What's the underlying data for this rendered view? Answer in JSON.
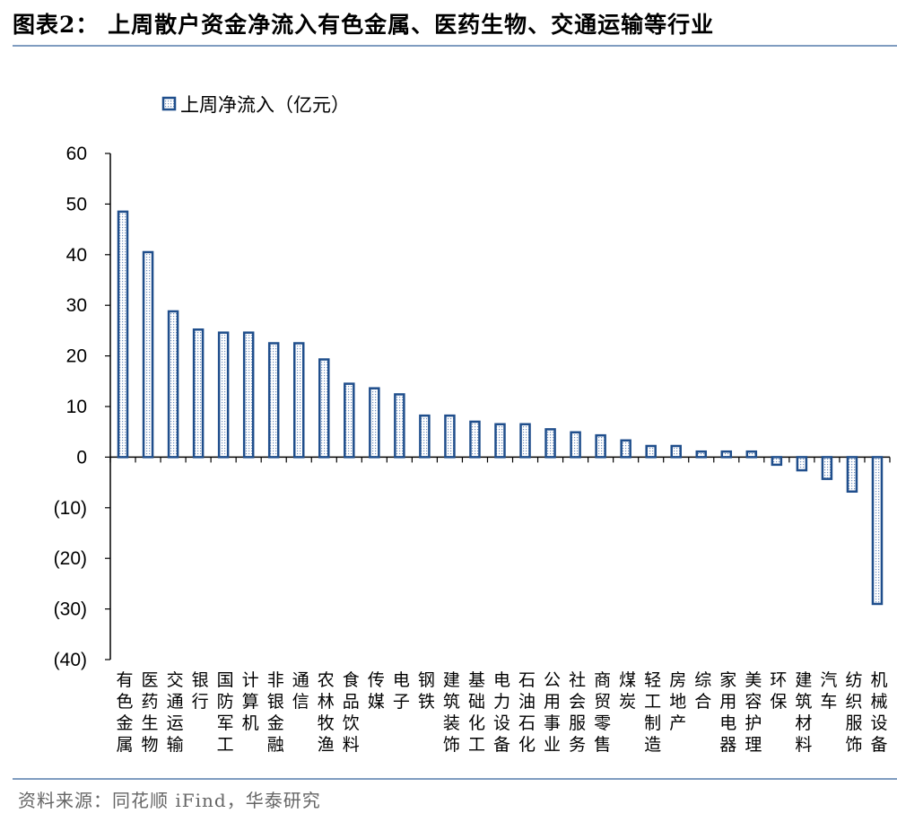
{
  "header": {
    "title": "图表2：  上周散户资金净流入有色金属、医药生物、交通运输等行业"
  },
  "footer": {
    "source": "资料来源：同花顺 iFind，华泰研究"
  },
  "colors": {
    "bar_stroke": "#1f4e8c",
    "bar_fill_pattern": "#6f8fbd",
    "rule": "#7f9cc0"
  },
  "chart_data": {
    "type": "bar",
    "title": "图表2：  上周散户资金净流入有色金属、医药生物、交通运输等行业",
    "xlabel": "",
    "ylabel": "",
    "ylim": [
      -40,
      60
    ],
    "yticks": [
      60,
      50,
      40,
      30,
      20,
      10,
      0,
      -10,
      -20,
      -30,
      -40
    ],
    "ytick_labels": [
      "60",
      "50",
      "40",
      "30",
      "20",
      "10",
      "0",
      "(10)",
      "(20)",
      "(30)",
      "(40)"
    ],
    "legend": {
      "position": "top-left"
    },
    "grid": false,
    "categories": [
      "有色金属",
      "医药生物",
      "交通运输",
      "银行",
      "国防军工",
      "计算机",
      "非银金融",
      "通信",
      "农林牧渔",
      "食品饮料",
      "传媒",
      "电子",
      "钢铁",
      "建筑装饰",
      "基础化工",
      "电力设备",
      "石油石化",
      "公用事业",
      "社会服务",
      "商贸零售",
      "煤炭",
      "轻工制造",
      "房地产",
      "综合",
      "家用电器",
      "美容护理",
      "环保",
      "建筑材料",
      "汽车",
      "纺织服饰",
      "机械设备"
    ],
    "series": [
      {
        "name": "上周净流入（亿元）",
        "values": [
          48.5,
          40.5,
          28.8,
          25.2,
          24.6,
          24.6,
          22.5,
          22.5,
          19.3,
          14.5,
          13.6,
          12.4,
          8.2,
          8.2,
          7.0,
          6.5,
          6.5,
          5.5,
          4.9,
          4.3,
          3.3,
          2.2,
          2.2,
          1.1,
          1.1,
          1.1,
          -1.5,
          -2.6,
          -4.3,
          -6.8,
          -29.0
        ]
      }
    ]
  }
}
